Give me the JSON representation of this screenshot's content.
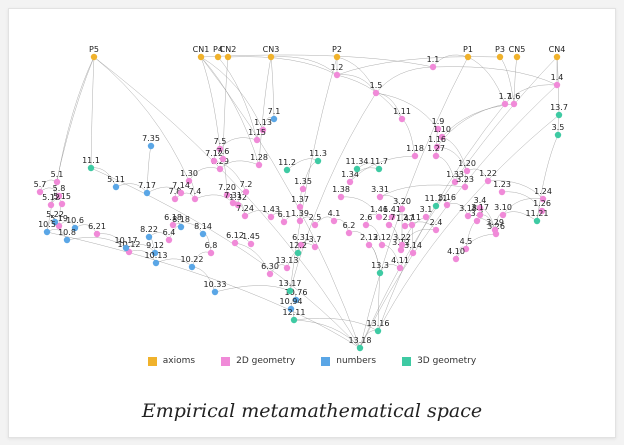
{
  "colors": {
    "axioms": "#f0b22c",
    "geometry2d": "#f08ad8",
    "numbers": "#5aa6e6",
    "geometry3d": "#3ecaa3",
    "edge": "#8a8a8a"
  },
  "legend": [
    {
      "label": "axioms",
      "color": "#f0b22c"
    },
    {
      "label": "2D geometry",
      "color": "#f08ad8"
    },
    {
      "label": "numbers",
      "color": "#5aa6e6"
    },
    {
      "label": "3D geometry",
      "color": "#3ecaa3"
    }
  ],
  "caption": "Empirical metamathematical space",
  "nodes": {
    "axioms": [
      "P5",
      "CN1",
      "P4",
      "CN2",
      "CN3",
      "P2",
      "P1",
      "P3",
      "CN5",
      "CN4"
    ],
    "geometry2d": [
      "1.1",
      "1.2",
      "1.5",
      "1.4",
      "1.7",
      "1.6",
      "1.11",
      "1.9",
      "1.10",
      "1.16",
      "1.18",
      "1.27",
      "1.20",
      "1.13",
      "1.15",
      "1.28",
      "1.29",
      "1.30",
      "1.32",
      "1.33",
      "1.34",
      "1.35",
      "1.37",
      "1.38",
      "1.39",
      "1.41",
      "1.43",
      "1.45",
      "1.46",
      "1.47",
      "1.22",
      "1.23",
      "1.24",
      "1.26",
      "2.4",
      "2.5",
      "2.6",
      "2.7",
      "2.11",
      "2.12",
      "2.13",
      "3.1",
      "3.3",
      "3.4",
      "3.7",
      "3.10",
      "3.12",
      "3.14",
      "3.16",
      "3.17",
      "3.18",
      "3.20",
      "3.22",
      "3.23",
      "3.26",
      "3.29",
      "3.31",
      "4.1",
      "4.5",
      "4.10",
      "4.11",
      "5.1",
      "5.7",
      "5.8",
      "5.12",
      "5.15",
      "5.19",
      "6.1",
      "6.2",
      "6.4",
      "6.8",
      "6.12",
      "6.18",
      "6.21",
      "6.30",
      "6.31",
      "7.2",
      "7.4",
      "7.5",
      "7.6",
      "7.8",
      "7.12",
      "7.14",
      "7.20",
      "7.24",
      "7.31",
      "10.12",
      "13.13"
    ],
    "numbers": [
      "7.1",
      "7.35",
      "7.17",
      "5.11",
      "5.22",
      "8.14",
      "8.18",
      "8.22",
      "9.12",
      "10.5",
      "10.6",
      "10.8",
      "10.13",
      "10.17",
      "10.22",
      "10.33",
      "10.76",
      "10.94"
    ],
    "geometry3d": [
      "11.1",
      "11.2",
      "11.3",
      "11.7",
      "11.11",
      "11.21",
      "13.7",
      "13.16",
      "13.17",
      "13.18",
      "12.11",
      "12.2",
      "11.34",
      "3.5",
      "13.3"
    ]
  }
}
